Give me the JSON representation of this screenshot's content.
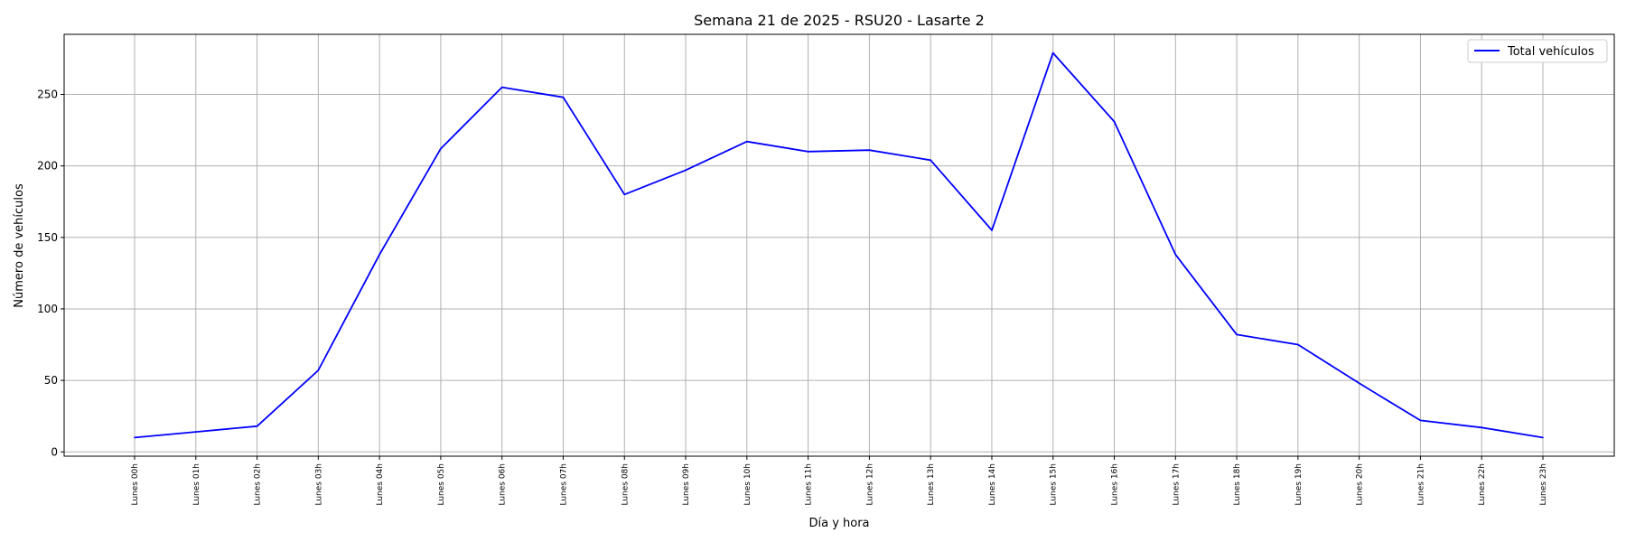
{
  "chart_data": {
    "type": "line",
    "title": "Semana 21 de 2025 - RSU20 - Lasarte 2",
    "xlabel": "Día y hora",
    "ylabel": "Número de vehículos",
    "categories": [
      "Lunes 00h",
      "Lunes 01h",
      "Lunes 02h",
      "Lunes 03h",
      "Lunes 04h",
      "Lunes 05h",
      "Lunes 06h",
      "Lunes 07h",
      "Lunes 08h",
      "Lunes 09h",
      "Lunes 10h",
      "Lunes 11h",
      "Lunes 12h",
      "Lunes 13h",
      "Lunes 14h",
      "Lunes 15h",
      "Lunes 16h",
      "Lunes 17h",
      "Lunes 18h",
      "Lunes 19h",
      "Lunes 20h",
      "Lunes 21h",
      "Lunes 22h",
      "Lunes 23h"
    ],
    "series": [
      {
        "name": "Total vehículos",
        "color": "#0000ff",
        "values": [
          10,
          14,
          18,
          57,
          138,
          212,
          255,
          248,
          180,
          197,
          217,
          210,
          211,
          204,
          155,
          279,
          231,
          138,
          82,
          75,
          48,
          22,
          17,
          10
        ]
      }
    ],
    "yticks": [
      0,
      50,
      100,
      150,
      200,
      250
    ],
    "ylim": [
      -3,
      292
    ],
    "grid": true,
    "legend_position": "top-right"
  }
}
